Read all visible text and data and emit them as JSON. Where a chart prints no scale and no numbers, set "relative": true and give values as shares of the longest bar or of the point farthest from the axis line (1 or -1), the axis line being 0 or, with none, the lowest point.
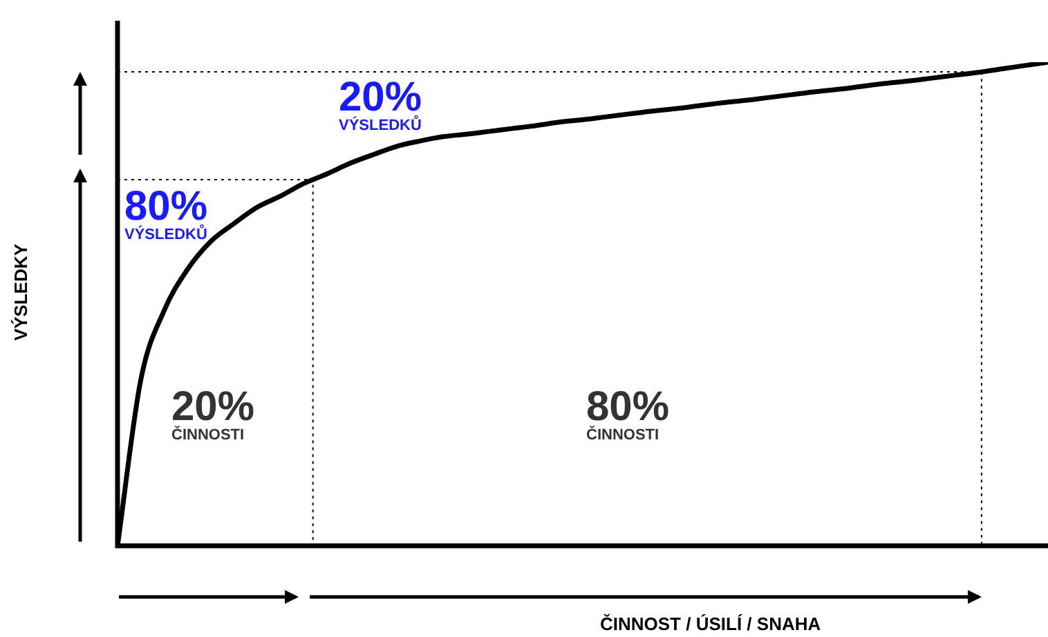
{
  "chart_data": {
    "type": "line",
    "relative": true,
    "xlabel": "ČINNOST / ÚSILÍ / SNAHA",
    "ylabel": "VÝSLEDKY",
    "categories": [
      null,
      null,
      null,
      null,
      null,
      null,
      null,
      null,
      null,
      null,
      null,
      null,
      null,
      null,
      null,
      null,
      null,
      null,
      null,
      null,
      null,
      null,
      null,
      null,
      null,
      null,
      null,
      null,
      null,
      null,
      null,
      null,
      null,
      null,
      null,
      null,
      null,
      null,
      null,
      null,
      null
    ],
    "series": [
      {
        "color": "#000000",
        "values": [
          0,
          0.343,
          0.486,
          0.571,
          0.629,
          0.666,
          0.7,
          0.723,
          0.749,
          0.769,
          0.791,
          0.809,
          0.826,
          0.837,
          0.846,
          0.851,
          0.857,
          0.863,
          0.869,
          0.876,
          0.881,
          0.887,
          0.893,
          0.899,
          0.904,
          0.91,
          0.916,
          0.921,
          0.927,
          0.933,
          0.939,
          0.944,
          0.95,
          0.956,
          0.961,
          0.967,
          0.973,
          0.979,
          0.986,
          0.993,
          1
        ]
      }
    ],
    "ref_lines": [
      {
        "axis": "y",
        "value": 0.757,
        "line_style": "dotted"
      },
      {
        "axis": "y",
        "value": 0.98,
        "line_style": "dotted"
      }
    ],
    "annotations": [
      "80%\nVÝSLEDKŮ",
      "20%\nVÝSLEDKŮ",
      "20%\nČINNOSTI",
      "80%\nČINNOSTI"
    ],
    "legend": false,
    "marker": "none",
    "line_style": "solid"
  }
}
